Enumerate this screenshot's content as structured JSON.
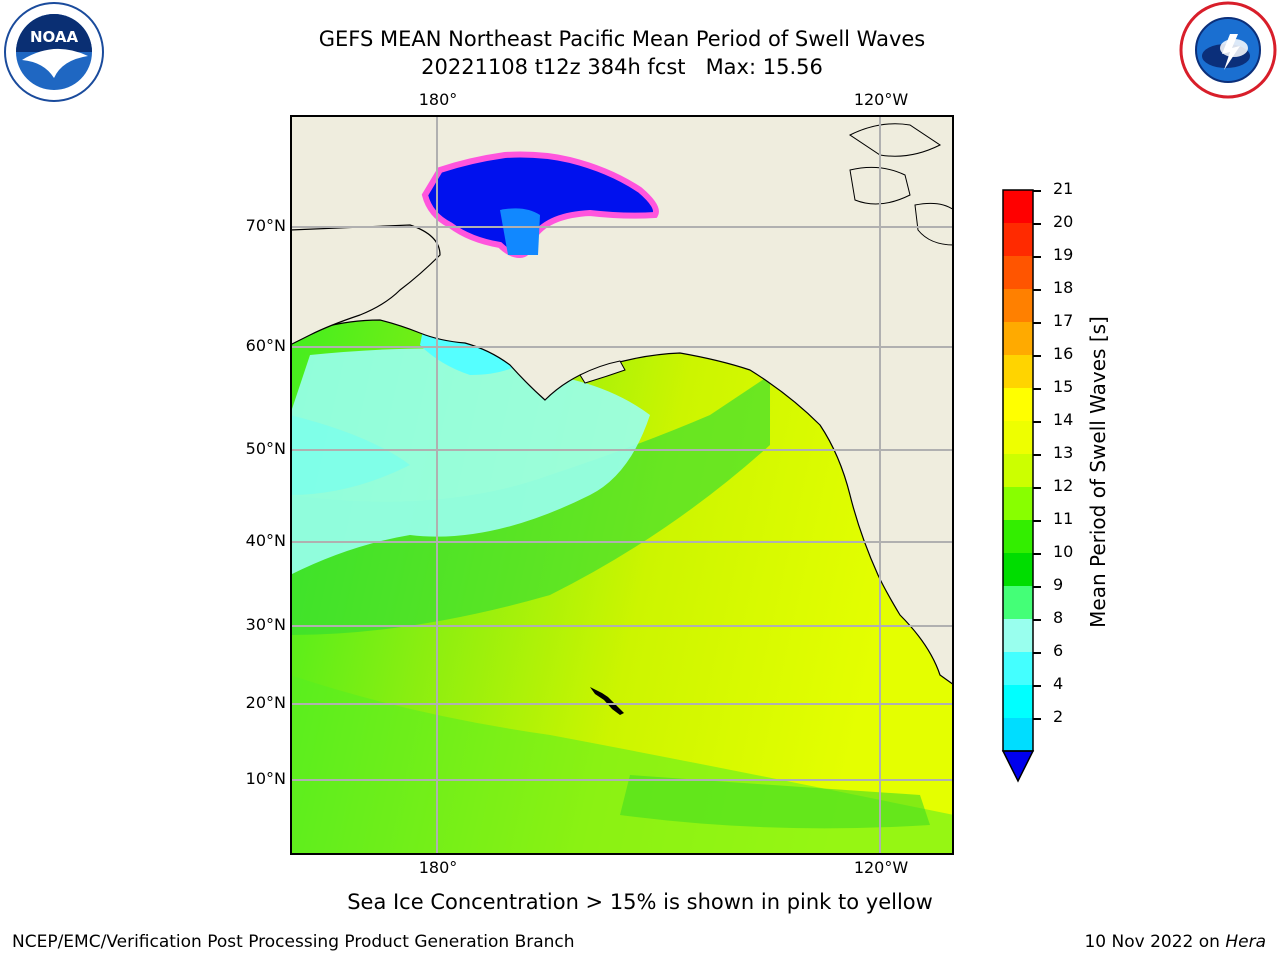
{
  "header": {
    "title_line1": "GEFS MEAN Northeast Pacific Mean Period of Swell Waves",
    "title_line2": "20221108 t12z 384h fcst   Max: 15.56"
  },
  "map": {
    "lon_labels": [
      "180°",
      "120°W"
    ],
    "lat_labels": [
      "70°N",
      "60°N",
      "50°N",
      "40°N",
      "30°N",
      "20°N",
      "10°N"
    ],
    "land_color": "#efedde",
    "grid_color": "#b0b0b0"
  },
  "colorbar": {
    "label": "Mean Period of Swell Waves [s]",
    "ticks": [
      "21",
      "20",
      "19",
      "18",
      "17",
      "16",
      "15",
      "14",
      "13",
      "12",
      "11",
      "10",
      "9",
      "8",
      "6",
      "4",
      "2"
    ],
    "colors_top_to_bottom": [
      "#ff0000",
      "#ff2a00",
      "#ff5500",
      "#ff8000",
      "#ffaa00",
      "#ffd400",
      "#ffff00",
      "#eeff00",
      "#ccff00",
      "#88ff00",
      "#33ee00",
      "#00dd00",
      "#44ff77",
      "#99ffee",
      "#44ffff",
      "#00ffff",
      "#00ddff",
      "#0077ff"
    ],
    "extend_color": "#0000ee"
  },
  "notes": {
    "ice": "Sea Ice Concentration > 15% is shown in pink to yellow"
  },
  "footer": {
    "left": "NCEP/EMC/Verification Post Processing Product Generation Branch",
    "right_prefix": "10 Nov 2022 on ",
    "right_host": "Hera"
  },
  "logos": {
    "noaa_text": "NOAA",
    "nws_text": "NATIONAL WEATHER SERVICE"
  }
}
